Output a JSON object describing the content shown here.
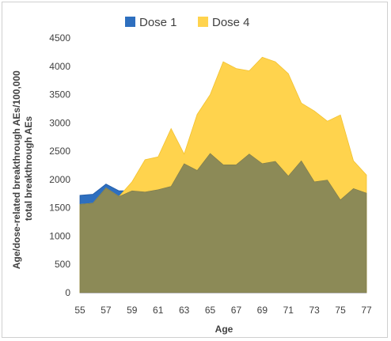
{
  "chart_data": {
    "type": "area",
    "x": [
      55,
      56,
      57,
      58,
      59,
      60,
      61,
      62,
      63,
      64,
      65,
      66,
      67,
      68,
      69,
      70,
      71,
      72,
      73,
      74,
      75,
      76,
      77
    ],
    "x_tick_labels": [
      "55",
      "57",
      "59",
      "61",
      "63",
      "65",
      "67",
      "69",
      "71",
      "73",
      "75",
      "77"
    ],
    "y_tick_labels": [
      "0",
      "500",
      "1000",
      "1500",
      "2000",
      "2500",
      "3000",
      "3500",
      "4000",
      "4500"
    ],
    "ylim": [
      0,
      4500
    ],
    "xlabel": "Age",
    "ylabel": "Age/dose-related breakthrough AEs/100,000 total breakthrough AEs",
    "ylabel_lines": [
      "Age/dose-related breakthrough AEs/100,000",
      "total breakthrough AEs"
    ],
    "legend_position": "top",
    "grid": false,
    "series": [
      {
        "name": "Dose 1",
        "color": "#2e6fbf",
        "values": [
          1720,
          1740,
          1920,
          1800,
          1800,
          1780,
          1820,
          1880,
          2280,
          2160,
          2460,
          2260,
          2260,
          2450,
          2280,
          2320,
          2060,
          2330,
          1960,
          1990,
          1640,
          1840,
          1760
        ]
      },
      {
        "name": "Dose 4",
        "color": "#ffd34d",
        "values": [
          1560,
          1580,
          1850,
          1700,
          1960,
          2350,
          2400,
          2900,
          2450,
          3150,
          3500,
          4080,
          3960,
          3920,
          4160,
          4080,
          3870,
          3350,
          3210,
          3030,
          3140,
          2330,
          2080
        ]
      }
    ],
    "overlap_color": "#8c8a57"
  }
}
